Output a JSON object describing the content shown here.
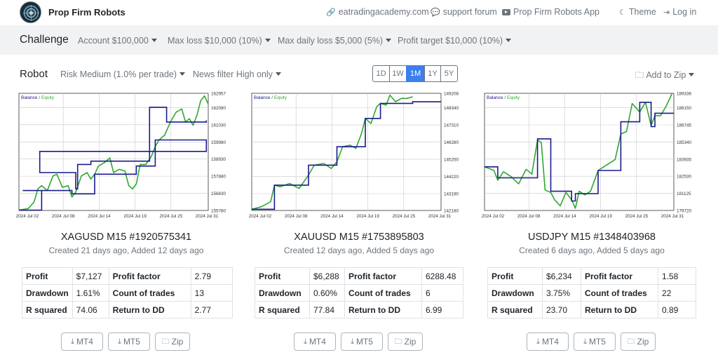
{
  "header": {
    "brand": "Prop Firm Robots",
    "links": [
      {
        "label": "eatradingacademy.com",
        "icon": "link-icon"
      },
      {
        "label": "support forum",
        "icon": "chat-icon"
      },
      {
        "label": "Prop Firm Robots App",
        "icon": "youtube-icon"
      },
      {
        "label": "Theme",
        "icon": "moon-icon"
      },
      {
        "label": "Log in",
        "icon": "login-icon"
      }
    ]
  },
  "challenge": {
    "title": "Challenge",
    "account": "Account $100,000",
    "max_loss": "Max loss $10,000 (10%)",
    "max_daily_loss": "Max daily loss $5,000 (5%)",
    "profit_target": "Profit target $10,000 (10%)"
  },
  "robot": {
    "title": "Robot",
    "risk": "Risk Medium (1.0% per trade)",
    "news_filter": "News filter High only",
    "periods": [
      "1D",
      "1W",
      "1M",
      "1Y",
      "5Y"
    ],
    "active_period": "1M",
    "add_to_zip": "Add to Zip"
  },
  "colors": {
    "accent": "#3d7ef0",
    "balance": "#1a1a8c",
    "equity": "#2fa82f"
  },
  "cards": [
    {
      "title": "XAGUSD M15 #1920575341",
      "subtitle": "Created 21 days ago, Added 12 days ago",
      "stats": {
        "profit_label": "Profit",
        "profit": "$7,127",
        "pf_label": "Profit factor",
        "pf": "2.79",
        "dd_label": "Drawdown",
        "dd": "1.61%",
        "trades_label": "Count of trades",
        "trades": "13",
        "rsq_label": "R squared",
        "rsq": "74.06",
        "rdd_label": "Return to DD",
        "rdd": "2.77"
      },
      "buttons": [
        "MT4",
        "MT5",
        "Zip"
      ],
      "chart_data": {
        "type": "line",
        "legend": [
          "Balance",
          "Equity"
        ],
        "x_ticks": [
          "2024 Jul 02",
          "2024 Jul 08",
          "2024 Jul 14",
          "2024 Jul 19",
          "2024 Jul 25",
          "2024 Jul 31"
        ],
        "y_ticks": [
          155780,
          156830,
          157880,
          158930,
          159980,
          161030,
          162080,
          162957
        ],
        "ylim": [
          155780,
          162957
        ],
        "series": [
          {
            "name": "Balance",
            "x": [
              0,
              0.12,
              0.12,
              0.02,
              0.28,
              0.28,
              0.4,
              0.4,
              0.62,
              0.62,
              0.72,
              0.72,
              0.99,
              0.99,
              0.11,
              0.11,
              0.3,
              0.3,
              0.31,
              0.31,
              0.38,
              0.38,
              0.69,
              0.69,
              0.78,
              0.78,
              0.99,
              0.99
            ],
            "y": [
              155800,
              155800,
              157000,
              157000,
              157000,
              156800,
              156800,
              158000,
              158000,
              158500,
              158500,
              160100,
              160100,
              159400,
              159400,
              158100,
              158100,
              157100,
              157100,
              158600,
              158600,
              158800,
              158800,
              162100,
              162100,
              161200,
              161200,
              161300
            ]
          },
          {
            "name": "Equity",
            "x": [
              0,
              0.05,
              0.08,
              0.1,
              0.12,
              0.15,
              0.18,
              0.2,
              0.23,
              0.26,
              0.28,
              0.3,
              0.33,
              0.36,
              0.38,
              0.4,
              0.42,
              0.45,
              0.48,
              0.5,
              0.53,
              0.56,
              0.58,
              0.6,
              0.62,
              0.64,
              0.67,
              0.7,
              0.72,
              0.74,
              0.77,
              0.8,
              0.83,
              0.86,
              0.88,
              0.9,
              0.92,
              0.94,
              0.96,
              0.98,
              1.0
            ],
            "y": [
              155800,
              155900,
              156300,
              157100,
              157300,
              157000,
              157900,
              158000,
              157200,
              157300,
              156600,
              156900,
              157900,
              158100,
              157700,
              158000,
              158500,
              158700,
              159000,
              158100,
              158300,
              158200,
              157300,
              157100,
              157400,
              158600,
              158600,
              159100,
              159700,
              160100,
              160400,
              161200,
              161800,
              162000,
              161200,
              161400,
              161000,
              161600,
              162500,
              162800,
              162300
            ]
          }
        ]
      }
    },
    {
      "title": "XAUUSD M15 #1753895803",
      "subtitle": "Created 12 days ago, Added 5 days ago",
      "stats": {
        "profit_label": "Profit",
        "profit": "$6,288",
        "pf_label": "Profit factor",
        "pf": "6288.48",
        "dd_label": "Drawdown",
        "dd": "0.60%",
        "trades_label": "Count of trades",
        "trades": "6",
        "rsq_label": "R squared",
        "rsq": "77.84",
        "rdd_label": "Return to DD",
        "rdd": "6.99"
      },
      "buttons": [
        "MT4",
        "MT5",
        "Zip"
      ],
      "chart_data": {
        "type": "line",
        "legend": [
          "Balance",
          "Equity"
        ],
        "x_ticks": [
          "2024 Jul 02",
          "2024 Jul 08",
          "2024 Jul 14",
          "2024 Jul 19",
          "2024 Jul 25",
          "2024 Jul 31"
        ],
        "y_ticks": [
          142180,
          143190,
          144220,
          145250,
          146280,
          147310,
          148340,
          149208
        ],
        "ylim": [
          142180,
          149208
        ],
        "series": [
          {
            "name": "Balance",
            "x": [
              0,
              0.12,
              0.12,
              0.3,
              0.3,
              0.45,
              0.45,
              0.6,
              0.6,
              0.68,
              0.68,
              0.85,
              0.85,
              1.0
            ],
            "y": [
              142250,
              142250,
              143700,
              143700,
              144900,
              144900,
              146000,
              146000,
              147700,
              147700,
              148600,
              148600,
              148700,
              148700
            ]
          },
          {
            "name": "Equity",
            "x": [
              0,
              0.05,
              0.1,
              0.12,
              0.15,
              0.2,
              0.25,
              0.3,
              0.33,
              0.38,
              0.42,
              0.45,
              0.48,
              0.52,
              0.55,
              0.58,
              0.6,
              0.63,
              0.66,
              0.68,
              0.71,
              0.73,
              0.76,
              0.79,
              0.82,
              0.85
            ],
            "y": [
              142250,
              142400,
              142700,
              143700,
              143600,
              143800,
              143500,
              144300,
              144900,
              145000,
              144700,
              145100,
              146000,
              146100,
              145900,
              146800,
              147700,
              147400,
              148400,
              148600,
              148500,
              149100,
              148700,
              148900,
              148900,
              149000
            ]
          }
        ]
      }
    },
    {
      "title": "USDJPY M15 #1348403968",
      "subtitle": "Created 6 days ago, Added 5 days ago",
      "stats": {
        "profit_label": "Profit",
        "profit": "$6,234",
        "pf_label": "Profit factor",
        "pf": "1.58",
        "dd_label": "Drawdown",
        "dd": "3.75%",
        "trades_label": "Count of trades",
        "trades": "22",
        "rsq_label": "R squared",
        "rsq": "23.70",
        "rdd_label": "Return to DD",
        "rdd": "0.89"
      },
      "buttons": [
        "MT4",
        "MT5",
        "Zip"
      ],
      "chart_data": {
        "type": "line",
        "legend": [
          "Balance",
          "Equity"
        ],
        "x_ticks": [
          "2024 Jul 02",
          "2024 Jul 08",
          "2024 Jul 14",
          "2024 Jul 19",
          "2024 Jul 25",
          "2024 Jul 31"
        ],
        "y_ticks": [
          179720,
          181125,
          182530,
          183935,
          185340,
          186745,
          188150,
          189336
        ],
        "ylim": [
          179720,
          189336
        ],
        "series": [
          {
            "name": "Balance",
            "x": [
              0,
              0.07,
              0.07,
              0.28,
              0.28,
              0.35,
              0.35,
              0.46,
              0.46,
              0.48,
              0.48,
              0.6,
              0.6,
              0.72,
              0.72,
              0.82,
              0.82,
              0.88,
              0.88,
              0.9,
              0.9,
              1.0
            ],
            "y": [
              183300,
              183300,
              182400,
              182400,
              185600,
              185600,
              181300,
              181300,
              180500,
              180500,
              181100,
              181100,
              183000,
              183000,
              187000,
              187000,
              188600,
              188600,
              186600,
              186600,
              187700,
              187700
            ]
          },
          {
            "name": "Equity",
            "x": [
              0,
              0.05,
              0.07,
              0.1,
              0.14,
              0.18,
              0.22,
              0.25,
              0.28,
              0.3,
              0.32,
              0.35,
              0.37,
              0.4,
              0.43,
              0.46,
              0.48,
              0.5,
              0.53,
              0.56,
              0.6,
              0.63,
              0.66,
              0.69,
              0.72,
              0.75,
              0.78,
              0.82,
              0.85,
              0.88,
              0.9,
              0.93,
              0.96,
              0.99
            ],
            "y": [
              183300,
              183000,
              182200,
              182900,
              182500,
              181900,
              183100,
              182700,
              185500,
              185300,
              181400,
              181200,
              180600,
              180100,
              181200,
              180600,
              179900,
              181300,
              181000,
              181300,
              183000,
              183300,
              183600,
              183900,
              186000,
              186200,
              188500,
              187800,
              188600,
              186700,
              187500,
              187500,
              188300,
              189300
            ]
          }
        ]
      }
    }
  ]
}
